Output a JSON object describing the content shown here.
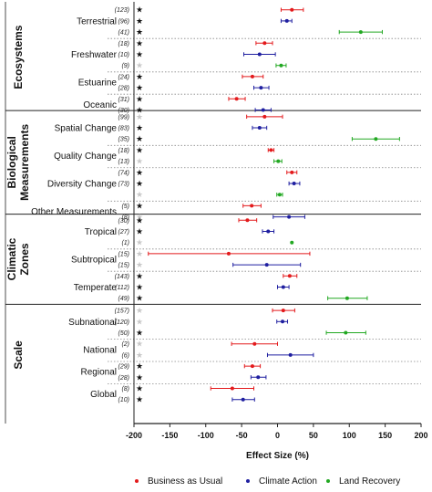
{
  "chart_data": {
    "type": "scatter",
    "subtype": "forest-plot-with-error-bars",
    "xlabel": "Effect Size (%)",
    "xlim": [
      -200,
      200
    ],
    "xticks": [
      "-200",
      "-150",
      "-100",
      "-50",
      "0",
      "50",
      "100",
      "150",
      "200"
    ],
    "legend_position": "bottom",
    "series": [
      {
        "name": "Business as Usual",
        "color": "#e31a1c"
      },
      {
        "name": "Climate Action",
        "color": "#1f1fa0"
      },
      {
        "name": "Land Recovery",
        "color": "#22a822"
      }
    ],
    "groups": [
      {
        "label": "Ecosystems",
        "categories": [
          {
            "label": "Terrestrial",
            "rows": [
              {
                "series": 0,
                "n": "(123)",
                "sig": true,
                "mean": 20,
                "low": 5,
                "high": 36
              },
              {
                "series": 1,
                "n": "(96)",
                "sig": true,
                "mean": 13,
                "low": 5,
                "high": 20
              },
              {
                "series": 2,
                "n": "(41)",
                "sig": true,
                "mean": 116,
                "low": 86,
                "high": 146
              }
            ]
          },
          {
            "label": "Freshwater",
            "rows": [
              {
                "series": 0,
                "n": "(18)",
                "sig": true,
                "mean": -18,
                "low": -30,
                "high": -7
              },
              {
                "series": 1,
                "n": "(10)",
                "sig": true,
                "mean": -25,
                "low": -47,
                "high": -3
              },
              {
                "series": 2,
                "n": "(9)",
                "sig": false,
                "mean": 5,
                "low": -2,
                "high": 12
              }
            ]
          },
          {
            "label": "Estuarine",
            "rows": [
              {
                "series": 0,
                "n": "(24)",
                "sig": true,
                "mean": -35,
                "low": -49,
                "high": -20
              },
              {
                "series": 1,
                "n": "(28)",
                "sig": true,
                "mean": -23,
                "low": -33,
                "high": -12
              }
            ]
          },
          {
            "label": "Oceanic",
            "rows": [
              {
                "series": 0,
                "n": "(31)",
                "sig": true,
                "mean": -57,
                "low": -68,
                "high": -45
              },
              {
                "series": 1,
                "n": "(30)",
                "sig": true,
                "mean": -20,
                "low": -31,
                "high": -9
              }
            ]
          }
        ]
      },
      {
        "label": "Biological Measurements",
        "categories": [
          {
            "label": "Spatial Change",
            "rows": [
              {
                "series": 0,
                "n": "(99)",
                "sig": false,
                "mean": -18,
                "low": -43,
                "high": 7
              },
              {
                "series": 1,
                "n": "(83)",
                "sig": true,
                "mean": -25,
                "low": -35,
                "high": -15
              },
              {
                "series": 2,
                "n": "(35)",
                "sig": true,
                "mean": 137,
                "low": 104,
                "high": 170
              }
            ]
          },
          {
            "label": "Quality Change",
            "rows": [
              {
                "series": 0,
                "n": "(18)",
                "sig": true,
                "mean": -9,
                "low": -13,
                "high": -5
              },
              {
                "series": 2,
                "n": "(13)",
                "sig": false,
                "mean": 1,
                "low": -5,
                "high": 6
              }
            ]
          },
          {
            "label": "Diversity Change",
            "rows": [
              {
                "series": 0,
                "n": "(74)",
                "sig": true,
                "mean": 20,
                "low": 13,
                "high": 27
              },
              {
                "series": 1,
                "n": "(73)",
                "sig": true,
                "mean": 23,
                "low": 16,
                "high": 31
              },
              {
                "series": 2,
                "n": "",
                "sig": false,
                "mean": 3,
                "low": -1,
                "high": 7
              }
            ]
          },
          {
            "label": "Other Measurements",
            "rows": [
              {
                "series": 0,
                "n": "(5)",
                "sig": true,
                "mean": -36,
                "low": -48,
                "high": -23
              },
              {
                "series": 1,
                "n": "(8)",
                "sig": false,
                "mean": 16,
                "low": -6,
                "high": 38
              }
            ]
          }
        ]
      },
      {
        "label": "Climatic Zones",
        "categories": [
          {
            "label": "Tropical",
            "rows": [
              {
                "series": 0,
                "n": "(30)",
                "sig": true,
                "mean": -42,
                "low": -54,
                "high": -29
              },
              {
                "series": 1,
                "n": "(27)",
                "sig": true,
                "mean": -13,
                "low": -21,
                "high": -5
              },
              {
                "series": 2,
                "n": "(1)",
                "sig": false,
                "mean": 20,
                "low": 20,
                "high": 20
              }
            ]
          },
          {
            "label": "Subtropical",
            "rows": [
              {
                "series": 0,
                "n": "(15)",
                "sig": false,
                "mean": -68,
                "low": -180,
                "high": 45
              },
              {
                "series": 1,
                "n": "(15)",
                "sig": false,
                "mean": -15,
                "low": -62,
                "high": 32
              }
            ]
          },
          {
            "label": "Temperate",
            "rows": [
              {
                "series": 0,
                "n": "(143)",
                "sig": true,
                "mean": 17,
                "low": 8,
                "high": 27
              },
              {
                "series": 1,
                "n": "(112)",
                "sig": true,
                "mean": 8,
                "low": 0,
                "high": 16
              },
              {
                "series": 2,
                "n": "(49)",
                "sig": true,
                "mean": 97,
                "low": 70,
                "high": 125
              }
            ]
          }
        ]
      },
      {
        "label": "Scale",
        "categories": [
          {
            "label": "Subnational",
            "rows": [
              {
                "series": 0,
                "n": "(157)",
                "sig": false,
                "mean": 8,
                "low": -7,
                "high": 24
              },
              {
                "series": 1,
                "n": "(120)",
                "sig": false,
                "mean": 7,
                "low": -1,
                "high": 14
              },
              {
                "series": 2,
                "n": "(50)",
                "sig": true,
                "mean": 95,
                "low": 68,
                "high": 123
              }
            ]
          },
          {
            "label": "National",
            "rows": [
              {
                "series": 0,
                "n": "(2)",
                "sig": false,
                "mean": -32,
                "low": -64,
                "high": 0
              },
              {
                "series": 1,
                "n": "(6)",
                "sig": false,
                "mean": 18,
                "low": -14,
                "high": 50
              }
            ]
          },
          {
            "label": "Regional",
            "rows": [
              {
                "series": 0,
                "n": "(29)",
                "sig": true,
                "mean": -35,
                "low": -46,
                "high": -24
              },
              {
                "series": 1,
                "n": "(28)",
                "sig": true,
                "mean": -27,
                "low": -37,
                "high": -16
              }
            ]
          },
          {
            "label": "Global",
            "rows": [
              {
                "series": 0,
                "n": "(8)",
                "sig": true,
                "mean": -63,
                "low": -93,
                "high": -33
              },
              {
                "series": 1,
                "n": "(10)",
                "sig": true,
                "mean": -48,
                "low": -63,
                "high": -32
              }
            ]
          }
        ]
      }
    ],
    "significance_marker": "★",
    "star_color": "#111111",
    "nonsig_star_color": "#c8c8c8",
    "grid": false
  }
}
